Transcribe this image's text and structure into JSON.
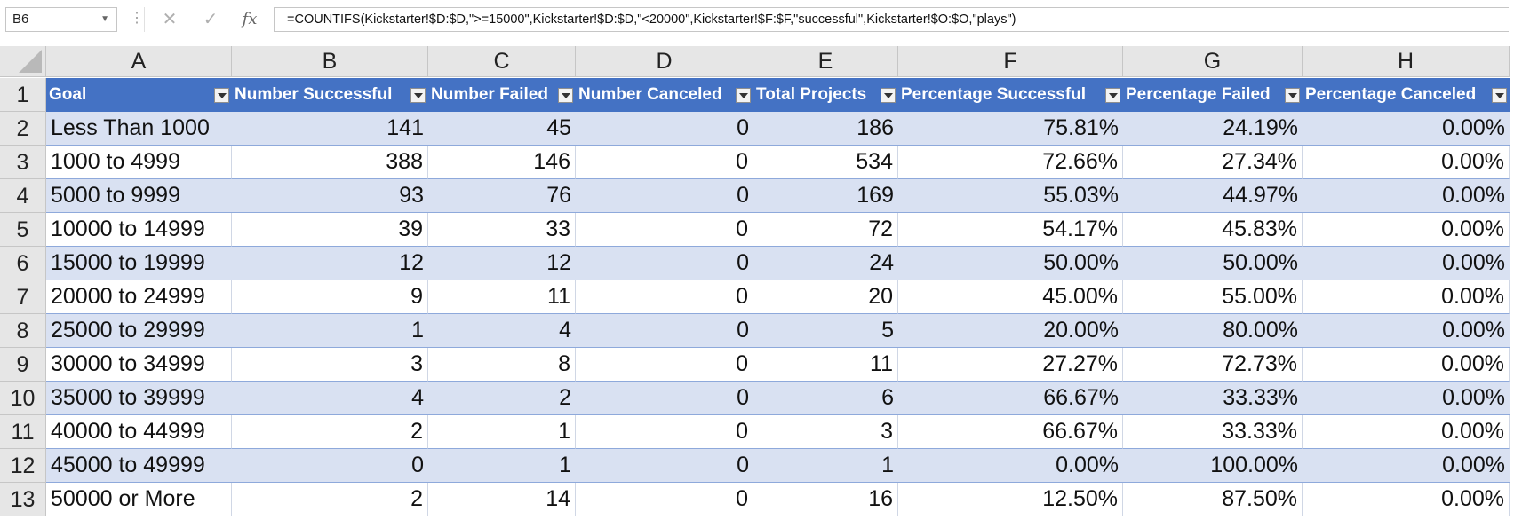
{
  "formula_bar": {
    "name_box": "B6",
    "formula": "=COUNTIFS(Kickstarter!$D:$D,\">=15000\",Kickstarter!$D:$D,\"<20000\",Kickstarter!$F:$F,\"successful\",Kickstarter!$O:$O,\"plays\")"
  },
  "columns": [
    "A",
    "B",
    "C",
    "D",
    "E",
    "F",
    "G",
    "H"
  ],
  "row_numbers": [
    "1",
    "2",
    "3",
    "4",
    "5",
    "6",
    "7",
    "8",
    "9",
    "10",
    "11",
    "12",
    "13"
  ],
  "table": {
    "headers": [
      "Goal",
      "Number Successful",
      "Number Failed",
      "Number Canceled",
      "Total Projects",
      "Percentage Successful",
      "Percentage Failed",
      "Percentage Canceled"
    ],
    "rows": [
      [
        "Less Than 1000",
        "141",
        "45",
        "0",
        "186",
        "75.81%",
        "24.19%",
        "0.00%"
      ],
      [
        "1000 to 4999",
        "388",
        "146",
        "0",
        "534",
        "72.66%",
        "27.34%",
        "0.00%"
      ],
      [
        "5000 to 9999",
        "93",
        "76",
        "0",
        "169",
        "55.03%",
        "44.97%",
        "0.00%"
      ],
      [
        "10000 to 14999",
        "39",
        "33",
        "0",
        "72",
        "54.17%",
        "45.83%",
        "0.00%"
      ],
      [
        "15000 to 19999",
        "12",
        "12",
        "0",
        "24",
        "50.00%",
        "50.00%",
        "0.00%"
      ],
      [
        "20000 to 24999",
        "9",
        "11",
        "0",
        "20",
        "45.00%",
        "55.00%",
        "0.00%"
      ],
      [
        "25000 to 29999",
        "1",
        "4",
        "0",
        "5",
        "20.00%",
        "80.00%",
        "0.00%"
      ],
      [
        "30000 to 34999",
        "3",
        "8",
        "0",
        "11",
        "27.27%",
        "72.73%",
        "0.00%"
      ],
      [
        "35000 to 39999",
        "4",
        "2",
        "0",
        "6",
        "66.67%",
        "33.33%",
        "0.00%"
      ],
      [
        "40000 to 44999",
        "2",
        "1",
        "0",
        "3",
        "66.67%",
        "33.33%",
        "0.00%"
      ],
      [
        "45000 to 49999",
        "0",
        "1",
        "0",
        "1",
        "0.00%",
        "100.00%",
        "0.00%"
      ],
      [
        "50000 or More",
        "2",
        "14",
        "0",
        "16",
        "12.50%",
        "87.50%",
        "0.00%"
      ]
    ]
  },
  "colors": {
    "header_fill": "#4472c4",
    "band_fill": "#d9e1f2",
    "header_text": "#ffffff"
  },
  "icons": [
    "cancel-icon",
    "enter-icon",
    "fx-icon",
    "filter-dropdown-icon",
    "select-all-corner-icon"
  ]
}
